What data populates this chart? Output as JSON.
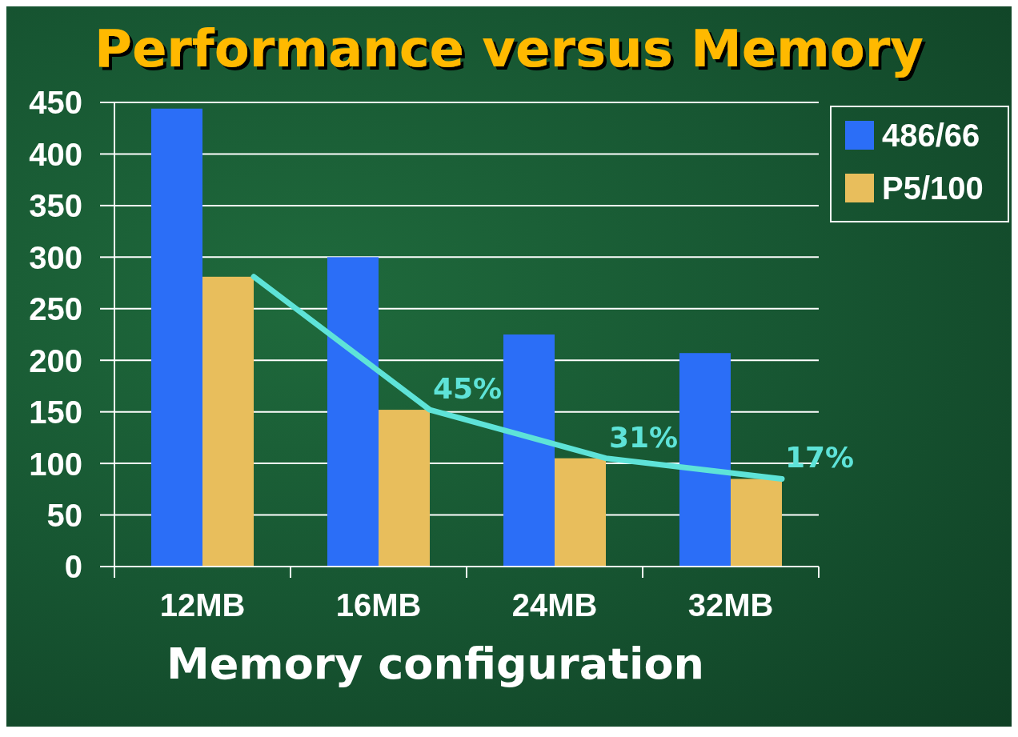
{
  "chart_data": {
    "type": "bar",
    "title": "Performance versus Memory",
    "xlabel": "Memory configuration",
    "categories": [
      "12MB",
      "16MB",
      "24MB",
      "32MB"
    ],
    "series": [
      {
        "name": "486/66",
        "color": "#2b6ef7",
        "values": [
          444,
          300,
          225,
          207
        ]
      },
      {
        "name": "P5/100",
        "color": "#e8be5c",
        "values": [
          281,
          152,
          105,
          85
        ]
      },
      {
        "type": "line",
        "color": "#5ee3d8",
        "values": [
          281,
          152,
          105,
          85
        ]
      }
    ],
    "ylim": [
      0,
      450
    ],
    "yticks": [
      0,
      50,
      100,
      150,
      200,
      250,
      300,
      350,
      400,
      450
    ],
    "grid": "y",
    "legend": "top right",
    "annotations": [
      {
        "text": "45%",
        "x": "16MB",
        "y": 152
      },
      {
        "text": "31%",
        "x": "24MB",
        "y": 105
      },
      {
        "text": "17%",
        "x": "32MB",
        "y": 85
      }
    ]
  }
}
